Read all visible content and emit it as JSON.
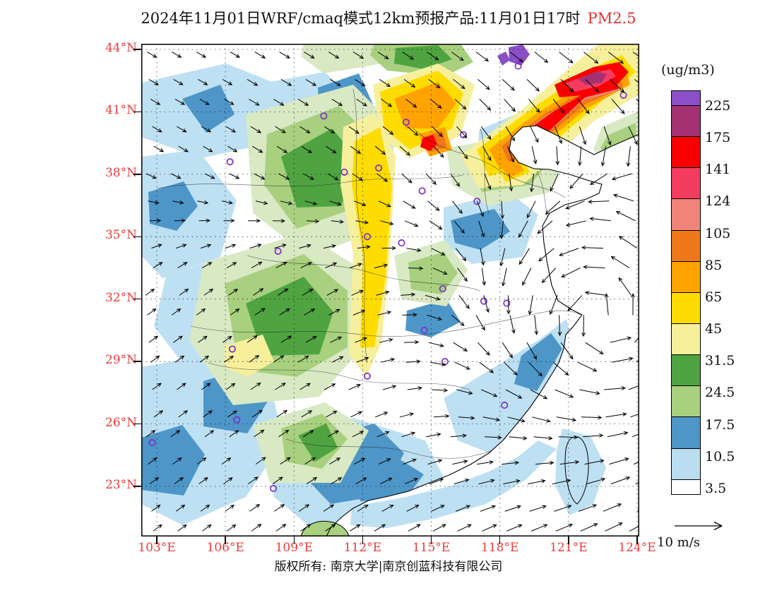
{
  "title": {
    "text": "2024年11月01日WRF/cmaq模式12km预报产品:11月01日17时",
    "species_label": "PM2.5"
  },
  "axes": {
    "lat_ticks": [
      "44°N",
      "41°N",
      "38°N",
      "35°N",
      "32°N",
      "29°N",
      "26°N",
      "23°N"
    ],
    "lon_ticks": [
      "103°E",
      "106°E",
      "109°E",
      "112°E",
      "115°E",
      "118°E",
      "121°E",
      "124°E"
    ]
  },
  "colorbar": {
    "unit": "(ug/m3)",
    "levels_top_to_bottom": [
      "225",
      "175",
      "141",
      "124",
      "105",
      "85",
      "65",
      "45",
      "31.5",
      "24.5",
      "17.5",
      "10.5",
      "3.5"
    ],
    "colors_top_to_bottom": [
      "#8B4FC8",
      "#A43272",
      "#FA0000",
      "#F43C60",
      "#F08478",
      "#F07818",
      "#FFA300",
      "#FFDC00",
      "#F6EF9C",
      "#4FA441",
      "#A8D07E",
      "#4E96C8",
      "#BBDDF0",
      "#FFFFFF"
    ]
  },
  "wind_legend": {
    "label": "10 m/s"
  },
  "footer": {
    "copyright": "版权所有: 南京大学|南京创蓝科技有限公司"
  },
  "accent_colors": {
    "axis_label_red": "#EA3B3B",
    "title_species_red": "#E03131",
    "station_marker_purple": "#7B2FC8"
  },
  "stations": [
    {
      "lon": 118.8,
      "lat": 43.2
    },
    {
      "lon": 123.4,
      "lat": 41.8
    },
    {
      "lon": 116.4,
      "lat": 39.9
    },
    {
      "lon": 110.3,
      "lat": 40.8
    },
    {
      "lon": 113.9,
      "lat": 40.5
    },
    {
      "lon": 106.2,
      "lat": 38.6
    },
    {
      "lon": 112.7,
      "lat": 38.3
    },
    {
      "lon": 111.2,
      "lat": 38.1
    },
    {
      "lon": 114.6,
      "lat": 37.2
    },
    {
      "lon": 117.0,
      "lat": 36.7
    },
    {
      "lon": 112.2,
      "lat": 35.0
    },
    {
      "lon": 113.7,
      "lat": 34.7
    },
    {
      "lon": 108.3,
      "lat": 34.3
    },
    {
      "lon": 115.5,
      "lat": 32.5
    },
    {
      "lon": 118.3,
      "lat": 31.8
    },
    {
      "lon": 117.3,
      "lat": 31.9
    },
    {
      "lon": 114.7,
      "lat": 30.5
    },
    {
      "lon": 106.3,
      "lat": 29.6
    },
    {
      "lon": 115.6,
      "lat": 29.0
    },
    {
      "lon": 112.2,
      "lat": 28.3
    },
    {
      "lon": 118.2,
      "lat": 26.9
    },
    {
      "lon": 106.5,
      "lat": 26.2
    },
    {
      "lon": 102.8,
      "lat": 25.1
    },
    {
      "lon": 108.1,
      "lat": 22.9
    }
  ],
  "chart_data": {
    "type": "heatmap",
    "title": "2024年11月01日WRF/cmaq模式12km预报产品:11月01日17时 PM2.5",
    "model": "WRF/cmaq",
    "grid_resolution": "12km",
    "variable": "PM2.5",
    "unit": "ug/m3",
    "forecast_valid": "2024-11-01 17时",
    "x_axis": {
      "ticks_deg_east": [
        103,
        106,
        109,
        112,
        115,
        118,
        121,
        124
      ],
      "range": [
        103,
        124
      ]
    },
    "y_axis": {
      "ticks_deg_north": [
        23,
        26,
        29,
        32,
        35,
        38,
        41,
        44
      ],
      "range": [
        23,
        44
      ]
    },
    "levels_low_to_high": [
      3.5,
      10.5,
      17.5,
      24.5,
      31.5,
      45,
      65,
      85,
      105,
      124,
      141,
      175,
      225
    ],
    "level_colors_low_to_high": [
      "#FFFFFF",
      "#BBDDF0",
      "#4E96C8",
      "#A8D07E",
      "#4FA441",
      "#F6EF9C",
      "#FFDC00",
      "#FFA300",
      "#F07818",
      "#F08478",
      "#F43C60",
      "#FA0000",
      "#A43272",
      "#8B4FC8"
    ],
    "wind_reference_ms": 10,
    "overlays": [
      "wind vector field",
      "lat-lon dotted graticule",
      "purple city station circles",
      "coast and province boundaries"
    ],
    "hotspots_read_from_map": [
      {
        "region": "Northeast band ~116-122E, 39-43N",
        "pm25": "124-225+"
      },
      {
        "region": "Shanxi-Hebei ~111-115E, 36-41N",
        "pm25": "65-141"
      },
      {
        "region": "Central band ~111-113E, 27-36N",
        "pm25": "45-85"
      },
      {
        "region": "Sichuan-Guizhou-Guangxi ~103-110E",
        "pm25": "10.5-45"
      },
      {
        "region": "East/Southeast China and adjacent seas",
        "pm25": "<10.5"
      }
    ]
  }
}
